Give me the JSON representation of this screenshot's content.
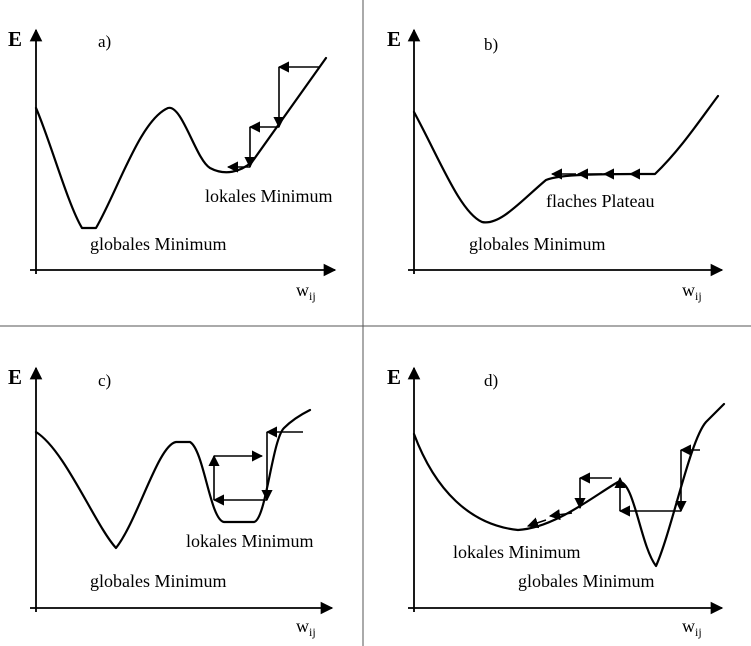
{
  "axes": {
    "y_label": "E",
    "x_label": "w",
    "x_subscript": "ij"
  },
  "panels": [
    {
      "letter": "a)",
      "labels": {
        "global": "globales Minimum",
        "local": "lokales Minimum"
      }
    },
    {
      "letter": "b)",
      "labels": {
        "global": "globales Minimum",
        "plateau": "flaches Plateau"
      }
    },
    {
      "letter": "c)",
      "labels": {
        "global": "globales Minimum",
        "local": "lokales Minimum"
      }
    },
    {
      "letter": "d)",
      "labels": {
        "global": "globales Minimum",
        "local": "lokales Minimum"
      }
    }
  ]
}
